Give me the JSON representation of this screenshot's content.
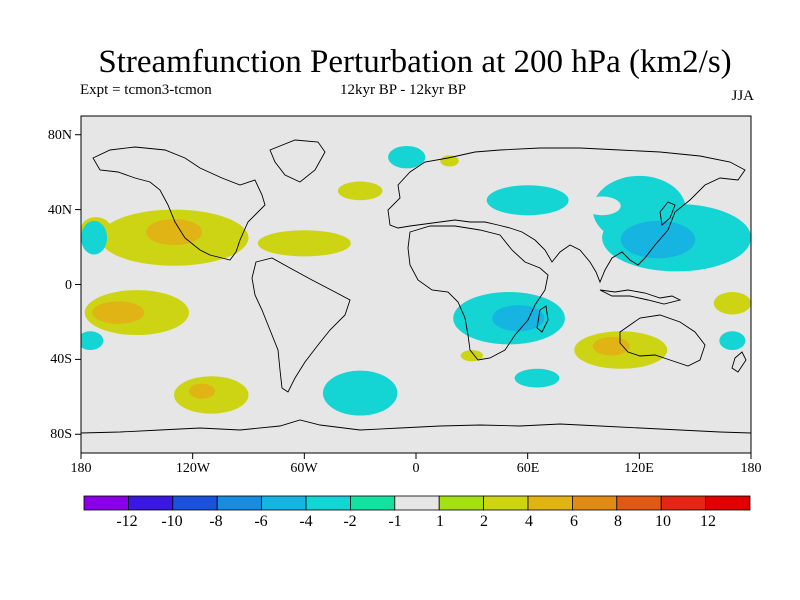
{
  "header": {
    "title": "Streamfunction Perturbation at 200 hPa (km2/s)",
    "experiment": "Expt = tcmon3-tcmon",
    "period": "12kyr BP - 12kyr BP",
    "season": "JJA"
  },
  "map": {
    "projection": "cylindrical equidistant",
    "lat_ticks": [
      "80N",
      "40N",
      "0",
      "40S",
      "80S"
    ],
    "lon_ticks": [
      "180",
      "120W",
      "60W",
      "0",
      "60E",
      "120E",
      "180"
    ],
    "background_color": "#e6e6e6",
    "coastline_color": "#000000"
  },
  "colorbar": {
    "tick_labels": [
      "-12",
      "-10",
      "-8",
      "-6",
      "-4",
      "-2",
      "-1",
      "1",
      "2",
      "4",
      "6",
      "8",
      "10",
      "12"
    ],
    "colors": [
      "#8a00e6",
      "#3a18e0",
      "#1a52dc",
      "#1a8ce0",
      "#16b4e0",
      "#14d4d4",
      "#14e0a0",
      "#e6e6e6",
      "#a4e014",
      "#cdd414",
      "#e0b414",
      "#e08c14",
      "#e05a14",
      "#e02814",
      "#e00000"
    ]
  },
  "chart_data": {
    "type": "heatmap",
    "title": "Streamfunction Perturbation at 200 hPa (km2/s)",
    "levels": [
      -12,
      -10,
      -8,
      -6,
      -4,
      -2,
      -1,
      1,
      2,
      4,
      6,
      8,
      10,
      12
    ],
    "regions": [
      {
        "lon": -130,
        "lat": 25,
        "rx": 40,
        "ry": 15,
        "level": 2
      },
      {
        "lon": -130,
        "lat": 28,
        "rx": 15,
        "ry": 7,
        "level": 4
      },
      {
        "lon": -60,
        "lat": 22,
        "rx": 25,
        "ry": 7,
        "level": 2
      },
      {
        "lon": -30,
        "lat": 50,
        "rx": 12,
        "ry": 5,
        "level": 2
      },
      {
        "lon": -172,
        "lat": 30,
        "rx": 8,
        "ry": 6,
        "level": 2
      },
      {
        "lon": -173,
        "lat": 25,
        "rx": 7,
        "ry": 9,
        "level": -2
      },
      {
        "lon": -150,
        "lat": -15,
        "rx": 28,
        "ry": 12,
        "level": 2
      },
      {
        "lon": -160,
        "lat": -15,
        "rx": 14,
        "ry": 6,
        "level": 4
      },
      {
        "lon": -175,
        "lat": -30,
        "rx": 7,
        "ry": 5,
        "level": -2
      },
      {
        "lon": -110,
        "lat": -59,
        "rx": 20,
        "ry": 10,
        "level": 2
      },
      {
        "lon": -115,
        "lat": -57,
        "rx": 7,
        "ry": 4,
        "level": 4
      },
      {
        "lon": -30,
        "lat": -58,
        "rx": 20,
        "ry": 12,
        "level": -2
      },
      {
        "lon": -5,
        "lat": 68,
        "rx": 10,
        "ry": 6,
        "level": -2
      },
      {
        "lon": 18,
        "lat": 66,
        "rx": 5,
        "ry": 3,
        "level": 2
      },
      {
        "lon": 60,
        "lat": 45,
        "rx": 22,
        "ry": 8,
        "level": -2
      },
      {
        "lon": 120,
        "lat": 40,
        "rx": 25,
        "ry": 18,
        "level": -2
      },
      {
        "lon": 140,
        "lat": 25,
        "rx": 40,
        "ry": 18,
        "level": -2
      },
      {
        "lon": 130,
        "lat": 24,
        "rx": 20,
        "ry": 10,
        "level": -4
      },
      {
        "lon": 100,
        "lat": 42,
        "rx": 10,
        "ry": 5,
        "level": 1
      },
      {
        "lon": 170,
        "lat": -10,
        "rx": 10,
        "ry": 6,
        "level": 2
      },
      {
        "lon": 50,
        "lat": -18,
        "rx": 30,
        "ry": 14,
        "level": -2
      },
      {
        "lon": 55,
        "lat": -18,
        "rx": 14,
        "ry": 7,
        "level": -4
      },
      {
        "lon": 110,
        "lat": -35,
        "rx": 25,
        "ry": 10,
        "level": 2
      },
      {
        "lon": 105,
        "lat": -33,
        "rx": 10,
        "ry": 5,
        "level": 4
      },
      {
        "lon": 170,
        "lat": -30,
        "rx": 7,
        "ry": 5,
        "level": -2
      },
      {
        "lon": 65,
        "lat": -50,
        "rx": 12,
        "ry": 5,
        "level": -2
      },
      {
        "lon": 30,
        "lat": -38,
        "rx": 6,
        "ry": 3,
        "level": 2
      }
    ]
  }
}
